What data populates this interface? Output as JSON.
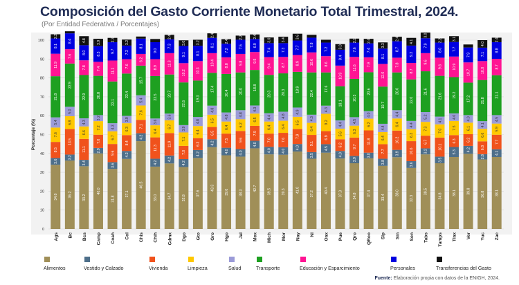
{
  "title": "Composición del Gasto Corriente Monetario Total Trimestral, 2024.",
  "subtitle": "(Por Entidad Federativa / Porcentajes)",
  "source_label": "Fuente:",
  "source_text": "Elaboración propia con datos de la ENIGH, 2024.",
  "chart_data": {
    "type": "bar",
    "stacked": true,
    "ylabel": "Porcentaje (%)",
    "xlabel": "",
    "ylim": [
      0,
      100
    ],
    "yticks": [
      0,
      10,
      20,
      30,
      40,
      50,
      60,
      70,
      80,
      90,
      100
    ],
    "grid": true,
    "legend_position": "bottom",
    "categories": [
      "Ags",
      "Bc",
      "Bcs",
      "Camp",
      "Coah",
      "Col",
      "Chis",
      "Chih",
      "Cdmx",
      "Dgo",
      "Gto",
      "Gro",
      "Hgo",
      "Jal",
      "Mex",
      "Mich",
      "Mor",
      "Nay",
      "Nl",
      "Oax",
      "Pue",
      "Qro",
      "QRoo",
      "Slp",
      "Sin",
      "Son",
      "Tabs",
      "Tamps",
      "Tlax",
      "Ver",
      "Yuc",
      "Zac"
    ],
    "series": [
      {
        "name": "Alimentos",
        "color": "#a08f58",
        "values": [
          34.0,
          36.2,
          33.2,
          40.0,
          31.8,
          37.1,
          46.5,
          33.0,
          34.7,
          32.8,
          37.6,
          43.3,
          39.0,
          38.3,
          42.7,
          39.5,
          39.3,
          41.0,
          37.2,
          40.4,
          37.3,
          34.8,
          37.4,
          33.4,
          38.0,
          32.3,
          39.5,
          34.8,
          38.1,
          39.8,
          36.8,
          38.1
        ]
      },
      {
        "name": "Vestido y Calzado",
        "color": "#4e6f8a",
        "values": [
          3.6,
          3.2,
          3.4,
          2.9,
          3.6,
          4.2,
          4.2,
          4.2,
          4.2,
          4.2,
          4.2,
          4.2,
          4.0,
          4.0,
          4.0,
          4.0,
          4.0,
          4.0,
          3.5,
          4.5,
          4.0,
          3.9,
          3.0,
          3.8,
          3.9,
          3.6,
          3.2,
          3.5,
          5.3,
          4.2,
          2.8,
          4.1
        ]
      },
      {
        "name": "Vivienda",
        "color": "#f0521c",
        "values": [
          8.5,
          13.5,
          11.1,
          7.0,
          9.6,
          8.4,
          7.1,
          11.3,
          11.9,
          7.0,
          6.3,
          6.5,
          7.5,
          9.6,
          7.9,
          7.0,
          7.6,
          7.9,
          9.1,
          6.9,
          6.2,
          9.7,
          11.8,
          7.7,
          10.2,
          10.6,
          6.7,
          10.1,
          6.3,
          6.2,
          6.8,
          7.7
        ]
      },
      {
        "name": "Limpieza",
        "color": "#ffc800",
        "values": [
          7.6,
          6.8,
          6.6,
          7.2,
          6.7,
          6.3,
          7.6,
          6.4,
          6.7,
          7.1,
          6.4,
          6.5,
          6.4,
          6.2,
          6.5,
          6.4,
          6.4,
          6.5,
          6.4,
          9.2,
          5.6,
          6.3,
          6.2,
          6.4,
          6.4,
          6.3,
          7.3,
          7.0,
          7.5,
          6.1,
          6.6,
          5.9
        ]
      },
      {
        "name": "Salud",
        "color": "#9b9bd8",
        "values": [
          5.4,
          5.0,
          4.3,
          3.2,
          4.3,
          3.9,
          5.4,
          3.6,
          3.6,
          3.9,
          4.8,
          4.8,
          4.8,
          4.8,
          4.3,
          4.4,
          4.8,
          4.9,
          4.3,
          4.3,
          4.4,
          4.5,
          4.0,
          4.4,
          4.4,
          4.4,
          5.2,
          4.1,
          4.0,
          4.0,
          4.1,
          4.5
        ]
      },
      {
        "name": "Transporte",
        "color": "#1ea021",
        "values": [
          21.8,
          22.9,
          22.9,
          20.8,
          22.1,
          22.4,
          15.7,
          22.5,
          20.7,
          22.6,
          19.3,
          17.4,
          20.4,
          20.0,
          18.8,
          20.3,
          20.3,
          18.9,
          22.4,
          17.6,
          18.1,
          20.3,
          20.6,
          19.7,
          20.0,
          22.0,
          21.6,
          21.6,
          19.2,
          17.2,
          21.8,
          21.1
        ]
      },
      {
        "name": "Educación y Esparcimiento",
        "color": "#ff1493",
        "values": [
          11.9,
          7.6,
          7.8,
          7.4,
          11.1,
          7.6,
          6.2,
          8.9,
          11.3,
          10.2,
          10.3,
          10.4,
          8.8,
          9.8,
          9.5,
          9.4,
          8.7,
          8.9,
          10.6,
          8.6,
          10.9,
          11.6,
          7.9,
          12.0,
          7.8,
          8.7,
          9.6,
          9.6,
          10.9,
          10.7,
          10.0,
          8.7
        ]
      },
      {
        "name": "Personales",
        "color": "#0000e0",
        "values": [
          8.1,
          8.4,
          8.0,
          8.3,
          9.7,
          7.2,
          8.1,
          9.0,
          7.3,
          9.1,
          8.1,
          8.1,
          7.2,
          7.5,
          6.9,
          7.4,
          7.3,
          7.7,
          7.8,
          7.2,
          8.4,
          7.6,
          7.4,
          8.1,
          8.7,
          9.2,
          7.9,
          8.0,
          7.7,
          7.9,
          7.1,
          8.8
        ]
      },
      {
        "name": "Transferencias del Gasto",
        "color": "#111111",
        "values": [
          2.2,
          1.1,
          4.8,
          3.9,
          2.3,
          3.2,
          1.1,
          1.7,
          2.4,
          3.0,
          3.2,
          2.4,
          2.4,
          2.2,
          2.4,
          3.0,
          3.4,
          3.6,
          1.5,
          1.5,
          3.0,
          2.1,
          2.4,
          3.3,
          2.4,
          4.1,
          3.0,
          2.2,
          3.1,
          1.6,
          4.0,
          2.4
        ]
      }
    ]
  }
}
